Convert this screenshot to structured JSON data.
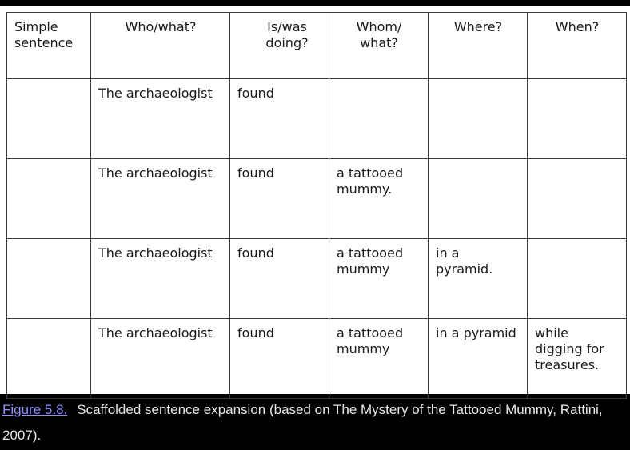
{
  "table": {
    "headers": [
      "Simple sentence",
      "Who/what?",
      "Is/was doing?",
      "Whom/ what?",
      "Where?",
      "When?"
    ],
    "rows": [
      [
        "",
        "The archaeologist",
        "found",
        "",
        "",
        ""
      ],
      [
        "",
        "The archaeologist",
        "found",
        "a tattooed mummy.",
        "",
        ""
      ],
      [
        "",
        "The archaeologist",
        "found",
        "a tattooed mummy",
        "in a pyramid.",
        ""
      ],
      [
        "",
        "The archaeologist",
        "found",
        "a tattooed mummy",
        "in a pyramid",
        "while digging for treasures."
      ]
    ]
  },
  "caption": {
    "link_label": "Figure 5.8.",
    "text": "Scaffolded sentence expansion (based on The Mystery of the Tattooed Mummy, Rattini, 2007)."
  },
  "colors": {
    "background": "#000000",
    "table_bg": "#ffffff",
    "link": "#8f8fff",
    "caption_text": "#e8e8e8"
  }
}
